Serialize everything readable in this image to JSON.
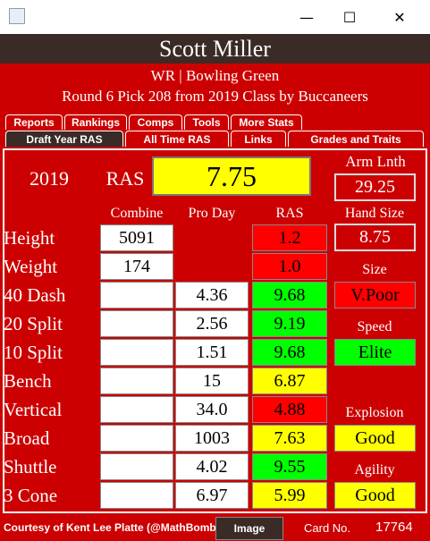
{
  "window": {
    "controls": [
      "—",
      "☐",
      "✕"
    ]
  },
  "header": {
    "name": "Scott Miller",
    "subtitle": "WR | Bowling Green",
    "draft": "Round 6 Pick 208 from 2019 Class by Buccaneers"
  },
  "tabs": {
    "row1": [
      "Reports",
      "Rankings",
      "Comps",
      "Tools",
      "More Stats"
    ],
    "row2": [
      "Draft Year RAS",
      "All Time RAS",
      "Links",
      "Grades and Traits"
    ]
  },
  "summary": {
    "year": "2019",
    "ras_label": "RAS",
    "ras_value": "7.75",
    "ras_color": "#ffff00",
    "arm_label": "Arm Lnth",
    "arm_value": "29.25"
  },
  "columns": {
    "combine": "Combine",
    "proday": "Pro Day",
    "ras": "RAS",
    "hand_label": "Hand Size"
  },
  "rows": [
    {
      "name": "Height",
      "combine": "5091",
      "proday": null,
      "ras": "1.2",
      "color": "#ff0000"
    },
    {
      "name": "Weight",
      "combine": "174",
      "proday": null,
      "ras": "1.0",
      "color": "#ff0000"
    },
    {
      "name": "40 Dash",
      "combine": null,
      "proday": "4.36",
      "ras": "9.68",
      "color": "#00ff00"
    },
    {
      "name": "20 Split",
      "combine": null,
      "proday": "2.56",
      "ras": "9.19",
      "color": "#00ff00"
    },
    {
      "name": "10 Split",
      "combine": null,
      "proday": "1.51",
      "ras": "9.68",
      "color": "#00ff00"
    },
    {
      "name": "Bench",
      "combine": null,
      "proday": "15",
      "ras": "6.87",
      "color": "#ffff00"
    },
    {
      "name": "Vertical",
      "combine": null,
      "proday": "34.0",
      "ras": "4.88",
      "color": "#ff0000"
    },
    {
      "name": "Broad",
      "combine": null,
      "proday": "1003",
      "ras": "7.63",
      "color": "#ffff00"
    },
    {
      "name": "Shuttle",
      "combine": null,
      "proday": "4.02",
      "ras": "9.55",
      "color": "#00ff00"
    },
    {
      "name": "3 Cone",
      "combine": null,
      "proday": "6.97",
      "ras": "5.99",
      "color": "#ffff00"
    }
  ],
  "side": [
    {
      "value": "8.75"
    },
    {
      "label": "Size"
    },
    {
      "value": "V.Poor",
      "color": "#ff0000"
    },
    {
      "label": "Speed"
    },
    {
      "value": "Elite",
      "color": "#00ff00"
    },
    null,
    {
      "label": "Explosion"
    },
    {
      "value": "Good",
      "color": "#ffff00"
    },
    {
      "label": "Agility"
    },
    {
      "value": "Good",
      "color": "#ffff00"
    }
  ],
  "footer": {
    "credit": "Courtesy of Kent Lee Platte (@MathBomb)",
    "button": "Image",
    "card_label": "Card No.",
    "card_no": "17764"
  }
}
